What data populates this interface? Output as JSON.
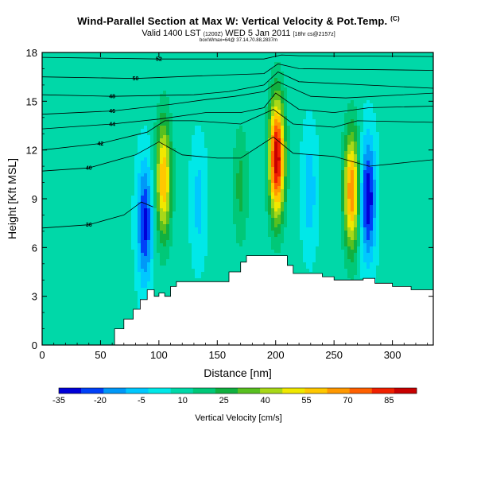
{
  "title": {
    "line1": "Wind-Parallel Section at Max W: Vertical Velocity & Pot.Temp.",
    "line1_mark": "(C)",
    "line2": "Valid 1400 LST",
    "line2_small1": "(1200Z)",
    "line2_mid": "WED 5 Jan 2011",
    "line2_small2": "[18hr cs@2157z]",
    "line3": "box\\Wmax=64@ 37.14,70.88,2837m"
  },
  "chart_data": {
    "type": "heatmap",
    "xlabel": "Distance [nm]",
    "ylabel": "Height [Kft MSL]",
    "xlim": [
      0,
      335
    ],
    "ylim": [
      0,
      18
    ],
    "xticks": [
      "0",
      "50",
      "100",
      "150",
      "200",
      "250",
      "300"
    ],
    "xtick_values": [
      0,
      50,
      100,
      150,
      200,
      250,
      300
    ],
    "yticks": [
      "0",
      "3",
      "6",
      "9",
      "12",
      "15",
      "18"
    ],
    "ytick_values": [
      0,
      3,
      6,
      9,
      12,
      15,
      18
    ],
    "colorbar": {
      "label": "Vertical Velocity [cm/s]",
      "tick_labels": [
        "-35",
        "-20",
        "-5",
        "10",
        "25",
        "40",
        "55",
        "70",
        "85"
      ],
      "tick_values": [
        -35,
        -20,
        -5,
        10,
        25,
        40,
        55,
        70,
        85
      ],
      "min": -35,
      "max": 95,
      "colors": [
        "#0000d8",
        "#0040f8",
        "#0098f8",
        "#00c8ff",
        "#00e8e8",
        "#00d8a8",
        "#00c878",
        "#10b040",
        "#58c020",
        "#a8d818",
        "#f0e800",
        "#ffc800",
        "#ff9800",
        "#ff6000",
        "#f02000",
        "#c80000"
      ]
    },
    "background_value": 8,
    "features": [
      {
        "kind": "updraft",
        "x": 104,
        "z": 10.2,
        "peak": 62
      },
      {
        "kind": "updraft",
        "x": 201,
        "z": 11.5,
        "peak": 94
      },
      {
        "kind": "updraft",
        "x": 265,
        "z": 9.5,
        "peak": 70
      },
      {
        "kind": "updraft",
        "x": 170,
        "z": 9.8,
        "peak": 25
      },
      {
        "kind": "downdraft",
        "x": 88,
        "z": 7.5,
        "peak": -30
      },
      {
        "kind": "downdraft",
        "x": 279,
        "z": 9.0,
        "peak": -35
      },
      {
        "kind": "downdraft",
        "x": 134,
        "z": 8.8,
        "peak": -6
      },
      {
        "kind": "downdraft",
        "x": 229,
        "z": 9.5,
        "peak": -8
      }
    ],
    "terrain": {
      "x": [
        0,
        55,
        62,
        70,
        78,
        84,
        90,
        96,
        100,
        105,
        110,
        115,
        140,
        160,
        170,
        175,
        200,
        210,
        215,
        240,
        250,
        275,
        285,
        300,
        316,
        335
      ],
      "z": [
        0,
        0,
        1.0,
        1.6,
        2.2,
        2.8,
        3.4,
        3.0,
        3.2,
        3.0,
        3.6,
        3.9,
        3.9,
        4.5,
        5.1,
        5.5,
        5.5,
        4.9,
        4.4,
        4.2,
        4.0,
        4.1,
        3.8,
        3.6,
        3.4,
        3.3
      ]
    },
    "theta_contours": [
      {
        "label": "52",
        "pts": [
          [
            0,
            17.7
          ],
          [
            100,
            17.6
          ],
          [
            150,
            17.6
          ],
          [
            190,
            17.6
          ],
          [
            205,
            17.85
          ],
          [
            220,
            17.8
          ],
          [
            335,
            17.75
          ]
        ]
      },
      {
        "label": "50",
        "pts": [
          [
            0,
            16.5
          ],
          [
            80,
            16.4
          ],
          [
            150,
            16.6
          ],
          [
            190,
            16.7
          ],
          [
            202,
            17.3
          ],
          [
            220,
            17.0
          ],
          [
            335,
            16.9
          ]
        ]
      },
      {
        "label": "48",
        "pts": [
          [
            0,
            15.4
          ],
          [
            60,
            15.3
          ],
          [
            130,
            15.4
          ],
          [
            160,
            15.6
          ],
          [
            190,
            16.0
          ],
          [
            202,
            16.8
          ],
          [
            220,
            16.2
          ],
          [
            335,
            15.8
          ]
        ]
      },
      {
        "label": "46",
        "pts": [
          [
            0,
            14.2
          ],
          [
            60,
            14.4
          ],
          [
            110,
            14.8
          ],
          [
            140,
            15.1
          ],
          [
            165,
            15.3
          ],
          [
            190,
            15.6
          ],
          [
            202,
            16.2
          ],
          [
            230,
            15.3
          ],
          [
            260,
            15.2
          ],
          [
            335,
            15.5
          ]
        ]
      },
      {
        "label": "44",
        "pts": [
          [
            0,
            13.3
          ],
          [
            60,
            13.6
          ],
          [
            100,
            13.9
          ],
          [
            140,
            14.3
          ],
          [
            170,
            14.3
          ],
          [
            190,
            14.6
          ],
          [
            200,
            15.5
          ],
          [
            220,
            14.5
          ],
          [
            250,
            14.3
          ],
          [
            280,
            14.6
          ],
          [
            335,
            14.7
          ]
        ]
      },
      {
        "label": "42",
        "pts": [
          [
            0,
            12.0
          ],
          [
            50,
            12.4
          ],
          [
            90,
            13.1
          ],
          [
            105,
            13.8
          ],
          [
            130,
            13.8
          ],
          [
            170,
            13.6
          ],
          [
            198,
            14.5
          ],
          [
            215,
            13.6
          ],
          [
            250,
            13.4
          ],
          [
            270,
            13.8
          ],
          [
            335,
            13.7
          ]
        ]
      },
      {
        "label": "40",
        "pts": [
          [
            0,
            10.7
          ],
          [
            40,
            10.9
          ],
          [
            80,
            11.7
          ],
          [
            100,
            12.5
          ],
          [
            120,
            11.7
          ],
          [
            150,
            11.5
          ],
          [
            170,
            11.5
          ],
          [
            198,
            12.8
          ],
          [
            215,
            11.8
          ],
          [
            250,
            11.6
          ],
          [
            280,
            11.0
          ],
          [
            335,
            11.4
          ]
        ]
      },
      {
        "label": "36",
        "pts": [
          [
            0,
            7.2
          ],
          [
            40,
            7.4
          ],
          [
            70,
            8.0
          ],
          [
            85,
            8.8
          ],
          [
            95,
            8.5
          ]
        ]
      }
    ]
  }
}
